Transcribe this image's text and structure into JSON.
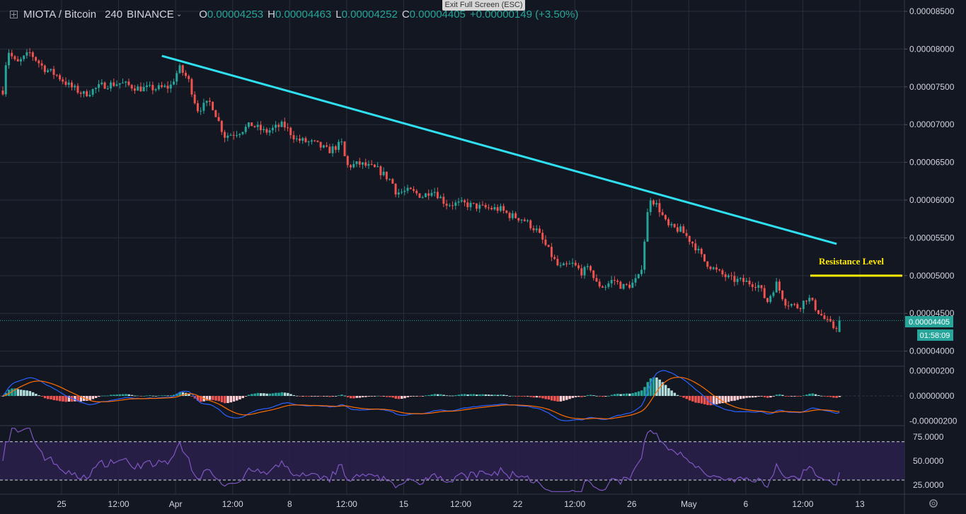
{
  "header": {
    "symbol": "MIOTA / Bitcoin",
    "interval": "240",
    "exchange": "BINANCE",
    "o_label": "O",
    "o_value": "0.00004253",
    "h_label": "H",
    "h_value": "0.00004463",
    "l_label": "L",
    "l_value": "0.00004252",
    "c_label": "C",
    "c_value": "0.00004405",
    "change": "+0.00000149 (+3.50%)"
  },
  "exit_fullscreen": "Exit Full Screen (ESC)",
  "colors": {
    "background": "#131722",
    "up": "#26a69a",
    "down": "#ef5350",
    "trendline": "#2fe0f0",
    "resistance": "#ffeb00",
    "macd": "#2962ff",
    "signal": "#ff6d00",
    "rsi": "#7e57c2",
    "grid": "#2a2e39"
  },
  "chart_data": [
    {
      "type": "candlestick",
      "title": "MIOTA / Bitcoin",
      "ylim": [
        3.8e-05,
        8.65e-05
      ],
      "y_ticks": [
        "0.00004000",
        "0.00004500",
        "0.00005000",
        "0.00005500",
        "0.00006000",
        "0.00006500",
        "0.00007000",
        "0.00007500",
        "0.00008000",
        "0.00008500"
      ],
      "x_ticks": [
        "25",
        "12:00",
        "Apr",
        "12:00",
        "8",
        "12:00",
        "15",
        "12:00",
        "22",
        "12:00",
        "26",
        "May",
        "6",
        "12:00",
        "13"
      ],
      "last_price_label": "0.00004405",
      "countdown": "01:58:09",
      "close_path": [
        [
          0.0,
          7.45e-05
        ],
        [
          0.005,
          8e-05
        ],
        [
          0.015,
          7.8e-05
        ],
        [
          0.03,
          7.95e-05
        ],
        [
          0.045,
          7.75e-05
        ],
        [
          0.06,
          7.65e-05
        ],
        [
          0.075,
          7.5e-05
        ],
        [
          0.09,
          7.4e-05
        ],
        [
          0.11,
          7.52e-05
        ],
        [
          0.13,
          7.55e-05
        ],
        [
          0.15,
          7.48e-05
        ],
        [
          0.17,
          7.48e-05
        ],
        [
          0.185,
          7.5e-05
        ],
        [
          0.195,
          7.75e-05
        ],
        [
          0.205,
          7.6e-05
        ],
        [
          0.215,
          7.2e-05
        ],
        [
          0.23,
          7.3e-05
        ],
        [
          0.245,
          6.85e-05
        ],
        [
          0.26,
          6.9e-05
        ],
        [
          0.275,
          7e-05
        ],
        [
          0.29,
          6.9e-05
        ],
        [
          0.31,
          7e-05
        ],
        [
          0.325,
          6.8e-05
        ],
        [
          0.345,
          6.75e-05
        ],
        [
          0.36,
          6.65e-05
        ],
        [
          0.375,
          6.75e-05
        ],
        [
          0.38,
          6.45e-05
        ],
        [
          0.395,
          6.48e-05
        ],
        [
          0.415,
          6.4e-05
        ],
        [
          0.43,
          6.25e-05
        ],
        [
          0.435,
          6.1e-05
        ],
        [
          0.45,
          6.12e-05
        ],
        [
          0.465,
          6.05e-05
        ],
        [
          0.475,
          6.15e-05
        ],
        [
          0.49,
          5.95e-05
        ],
        [
          0.51,
          5.95e-05
        ],
        [
          0.53,
          5.9e-05
        ],
        [
          0.55,
          5.88e-05
        ],
        [
          0.56,
          5.8e-05
        ],
        [
          0.575,
          5.75e-05
        ],
        [
          0.59,
          5.6e-05
        ],
        [
          0.6,
          5.4e-05
        ],
        [
          0.615,
          5.1e-05
        ],
        [
          0.63,
          5.15e-05
        ],
        [
          0.64,
          5.05e-05
        ],
        [
          0.65,
          5.1e-05
        ],
        [
          0.655,
          4.9e-05
        ],
        [
          0.665,
          4.85e-05
        ],
        [
          0.675,
          4.95e-05
        ],
        [
          0.685,
          4.85e-05
        ],
        [
          0.695,
          4.88e-05
        ],
        [
          0.705,
          5e-05
        ],
        [
          0.715,
          6.05e-05
        ],
        [
          0.725,
          5.9e-05
        ],
        [
          0.735,
          5.65e-05
        ],
        [
          0.75,
          5.6e-05
        ],
        [
          0.765,
          5.4e-05
        ],
        [
          0.775,
          5.2e-05
        ],
        [
          0.79,
          5.05e-05
        ],
        [
          0.805,
          4.95e-05
        ],
        [
          0.82,
          4.92e-05
        ],
        [
          0.835,
          4.88e-05
        ],
        [
          0.845,
          4.65e-05
        ],
        [
          0.855,
          4.9e-05
        ],
        [
          0.865,
          4.65e-05
        ],
        [
          0.88,
          4.58e-05
        ],
        [
          0.89,
          4.72e-05
        ],
        [
          0.9,
          4.55e-05
        ],
        [
          0.91,
          4.4e-05
        ],
        [
          0.92,
          4.3e-05
        ],
        [
          0.925,
          4.4e-05
        ]
      ],
      "trendline": {
        "from": [
          0.179,
          7.91e-05
        ],
        "to": [
          0.925,
          5.42e-05
        ]
      },
      "resistance": {
        "label": "Resistance Level",
        "value": 5e-05
      }
    },
    {
      "type": "macd",
      "y_ticks": [
        "0.00000200",
        "0.00000000",
        "-0.00000200"
      ],
      "ylim": [
        -2.3e-06,
        2.3e-06
      ]
    },
    {
      "type": "rsi",
      "y_ticks": [
        "75.0000",
        "50.0000",
        "25.0000"
      ],
      "ylim": [
        16,
        86
      ],
      "band": [
        30,
        70
      ],
      "last_value": 38
    }
  ]
}
